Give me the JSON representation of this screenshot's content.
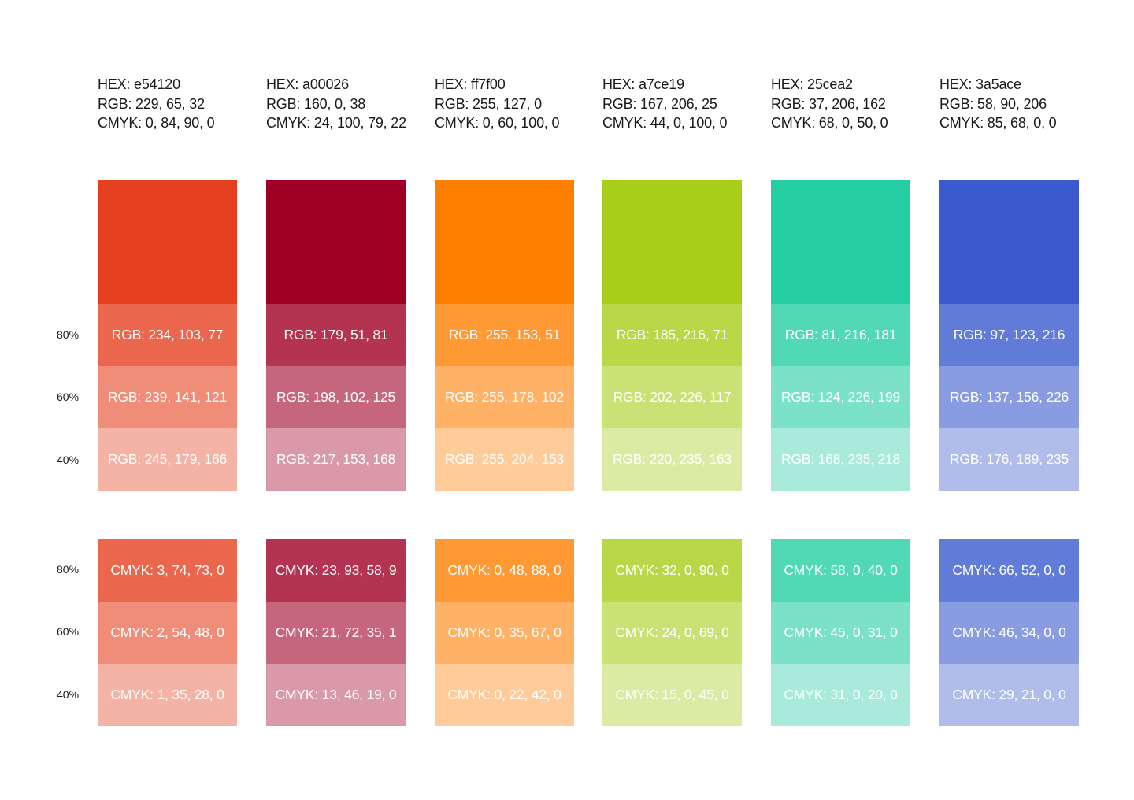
{
  "percent_labels": [
    "80%",
    "60%",
    "40%"
  ],
  "colors": [
    {
      "hex_label": "HEX: e54120",
      "rgb_label": "RGB: 229, 65, 32",
      "cmyk_label": "CMYK: 0, 84, 90, 0",
      "base": "#e54120",
      "rgb_tints": [
        {
          "label": "RGB: 234, 103, 77",
          "color": "#ea674d"
        },
        {
          "label": "RGB: 239, 141, 121",
          "color": "#ef8d79"
        },
        {
          "label": "RGB: 245, 179, 166",
          "color": "#f5b3a6"
        }
      ],
      "cmyk_tints": [
        {
          "label": "CMYK: 3, 74, 73, 0",
          "color": "#ea674d"
        },
        {
          "label": "CMYK: 2, 54, 48, 0",
          "color": "#ef8d79"
        },
        {
          "label": "CMYK: 1, 35, 28, 0",
          "color": "#f5b3a6"
        }
      ]
    },
    {
      "hex_label": "HEX: a00026",
      "rgb_label": "RGB: 160, 0, 38",
      "cmyk_label": "CMYK: 24, 100, 79, 22",
      "base": "#a00026",
      "rgb_tints": [
        {
          "label": "RGB: 179, 51, 81",
          "color": "#b33351"
        },
        {
          "label": "RGB: 198, 102, 125",
          "color": "#c6667d"
        },
        {
          "label": "RGB: 217, 153, 168",
          "color": "#d999a8"
        }
      ],
      "cmyk_tints": [
        {
          "label": "CMYK: 23, 93, 58, 9",
          "color": "#b33351"
        },
        {
          "label": "CMYK: 21, 72, 35, 1",
          "color": "#c6667d"
        },
        {
          "label": "CMYK: 13, 46, 19, 0",
          "color": "#d999a8"
        }
      ]
    },
    {
      "hex_label": "HEX: ff7f00",
      "rgb_label": "RGB: 255, 127, 0",
      "cmyk_label": "CMYK: 0, 60, 100, 0",
      "base": "#ff7f00",
      "rgb_tints": [
        {
          "label": "RGB: 255, 153, 51",
          "color": "#ff9933"
        },
        {
          "label": "RGB: 255, 178, 102",
          "color": "#ffb266"
        },
        {
          "label": "RGB: 255, 204, 153",
          "color": "#ffcc99"
        }
      ],
      "cmyk_tints": [
        {
          "label": "CMYK: 0, 48, 88, 0",
          "color": "#ff9933"
        },
        {
          "label": "CMYK: 0, 35, 67, 0",
          "color": "#ffb266"
        },
        {
          "label": "CMYK: 0, 22, 42, 0",
          "color": "#ffcc99"
        }
      ]
    },
    {
      "hex_label": "HEX: a7ce19",
      "rgb_label": "RGB: 167, 206, 25",
      "cmyk_label": "CMYK: 44, 0, 100, 0",
      "base": "#a7ce19",
      "rgb_tints": [
        {
          "label": "RGB: 185, 216, 71",
          "color": "#b9d847"
        },
        {
          "label": "RGB: 202, 226, 117",
          "color": "#cae275"
        },
        {
          "label": "RGB: 220, 235, 163",
          "color": "#dceba3"
        }
      ],
      "cmyk_tints": [
        {
          "label": "CMYK: 32, 0, 90, 0",
          "color": "#b9d847"
        },
        {
          "label": "CMYK: 24, 0, 69, 0",
          "color": "#cae275"
        },
        {
          "label": "CMYK: 15, 0, 45, 0",
          "color": "#dceba3"
        }
      ]
    },
    {
      "hex_label": "HEX: 25cea2",
      "rgb_label": "RGB: 37, 206, 162",
      "cmyk_label": "CMYK: 68, 0, 50, 0",
      "base": "#25cea2",
      "rgb_tints": [
        {
          "label": "RGB: 81, 216, 181",
          "color": "#51d8b5"
        },
        {
          "label": "RGB: 124, 226, 199",
          "color": "#7ce2c7"
        },
        {
          "label": "RGB: 168, 235, 218",
          "color": "#a8ebda"
        }
      ],
      "cmyk_tints": [
        {
          "label": "CMYK: 58, 0, 40, 0",
          "color": "#51d8b5"
        },
        {
          "label": "CMYK: 45, 0, 31, 0",
          "color": "#7ce2c7"
        },
        {
          "label": "CMYK: 31, 0, 20, 0",
          "color": "#a8ebda"
        }
      ]
    },
    {
      "hex_label": "HEX: 3a5ace",
      "rgb_label": "RGB: 58, 90, 206",
      "cmyk_label": "CMYK: 85, 68, 0, 0",
      "base": "#3a5ace",
      "rgb_tints": [
        {
          "label": "RGB: 97, 123, 216",
          "color": "#617bd8"
        },
        {
          "label": "RGB: 137, 156, 226",
          "color": "#899ce2"
        },
        {
          "label": "RGB: 176, 189, 235",
          "color": "#b0bdeb"
        }
      ],
      "cmyk_tints": [
        {
          "label": "CMYK: 66, 52, 0, 0",
          "color": "#617bd8"
        },
        {
          "label": "CMYK: 46, 34, 0, 0",
          "color": "#899ce2"
        },
        {
          "label": "CMYK: 29, 21, 0, 0",
          "color": "#b0bdeb"
        }
      ]
    }
  ]
}
